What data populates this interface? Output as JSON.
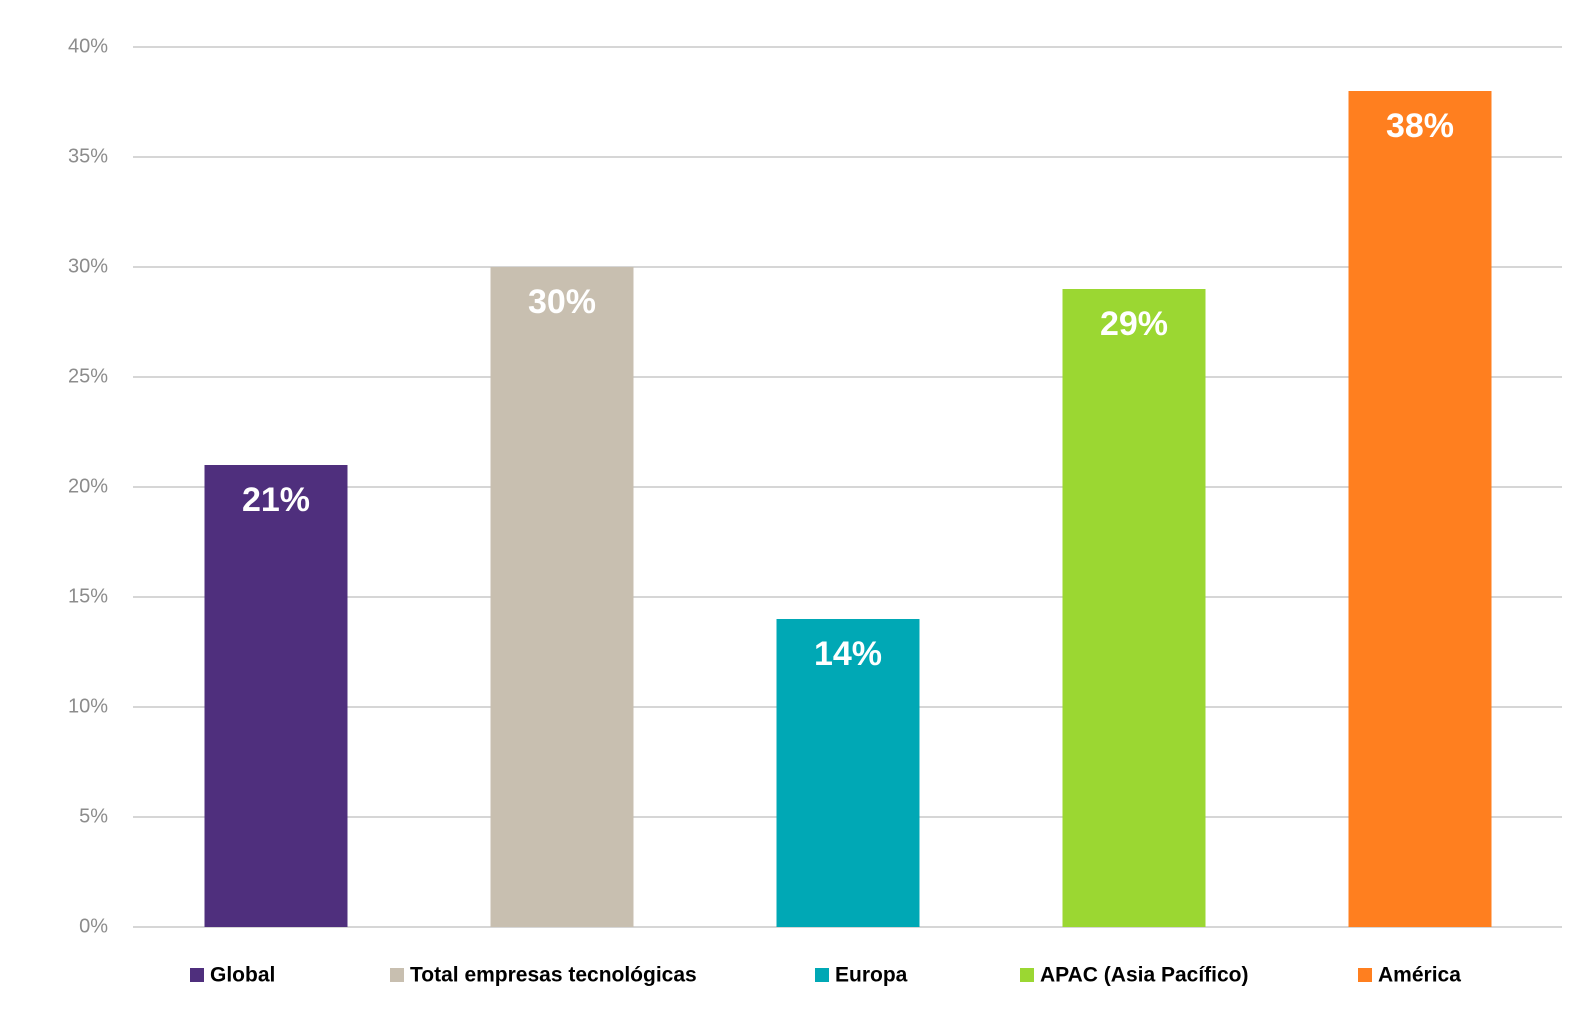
{
  "chart_data": {
    "type": "bar",
    "series": [
      {
        "name": "Global",
        "color": "#4f2f7d",
        "values": [
          21
        ],
        "value_labels": [
          "21%"
        ]
      },
      {
        "name": "Total empresas tecnológicas",
        "color": "#c8bfb0",
        "values": [
          30
        ],
        "value_labels": [
          "30%"
        ]
      },
      {
        "name": "Europa",
        "color": "#00a8b5",
        "values": [
          14
        ],
        "value_labels": [
          "14%"
        ]
      },
      {
        "name": "APAC (Asia Pacífico)",
        "color": "#9bd732",
        "values": [
          29
        ],
        "value_labels": [
          "29%"
        ]
      },
      {
        "name": "América",
        "color": "#ff7f1f",
        "values": [
          38
        ],
        "value_labels": [
          "38%"
        ]
      }
    ],
    "ylim": [
      0,
      40
    ],
    "yticks": [
      {
        "value": 0,
        "label": "0%"
      },
      {
        "value": 5,
        "label": "5%"
      },
      {
        "value": 10,
        "label": "10%"
      },
      {
        "value": 15,
        "label": "15%"
      },
      {
        "value": 20,
        "label": "20%"
      },
      {
        "value": 25,
        "label": "25%"
      },
      {
        "value": 30,
        "label": "30%"
      },
      {
        "value": 35,
        "label": "35%"
      },
      {
        "value": 40,
        "label": "40%"
      }
    ],
    "grid": true,
    "legend": "bottom"
  }
}
